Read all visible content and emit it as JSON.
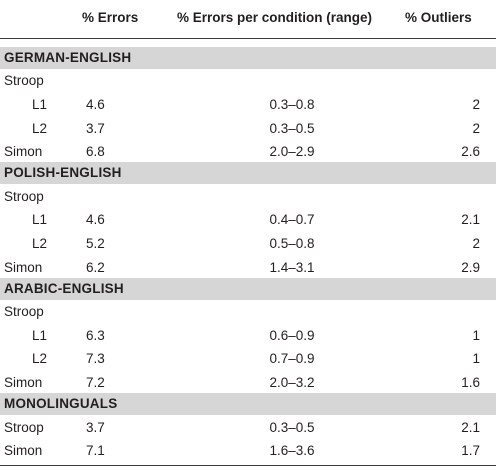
{
  "header": {
    "errors": "% Errors",
    "errors_per_condition": "% Errors per condition (range)",
    "outliers": "% Outliers"
  },
  "sections": [
    {
      "title": "GERMAN-ENGLISH",
      "rows": [
        {
          "label": "Stroop",
          "errors": "",
          "range": "",
          "outliers": ""
        },
        {
          "label": "L1",
          "errors": "4.6",
          "range": "0.3–0.8",
          "outliers": "2"
        },
        {
          "label": "L2",
          "errors": "3.7",
          "range": "0.3–0.5",
          "outliers": "2"
        },
        {
          "label": "Simon",
          "errors": "6.8",
          "range": "2.0–2.9",
          "outliers": "2.6"
        }
      ]
    },
    {
      "title": "POLISH-ENGLISH",
      "rows": [
        {
          "label": "Stroop",
          "errors": "",
          "range": "",
          "outliers": ""
        },
        {
          "label": "L1",
          "errors": "4.6",
          "range": "0.4–0.7",
          "outliers": "2.1"
        },
        {
          "label": "L2",
          "errors": "5.2",
          "range": "0.5–0.8",
          "outliers": "2"
        },
        {
          "label": "Simon",
          "errors": "6.2",
          "range": "1.4–3.1",
          "outliers": "2.9"
        }
      ]
    },
    {
      "title": "ARABIC-ENGLISH",
      "rows": [
        {
          "label": "Stroop",
          "errors": "",
          "range": "",
          "outliers": ""
        },
        {
          "label": "L1",
          "errors": "6.3",
          "range": "0.6–0.9",
          "outliers": "1"
        },
        {
          "label": "L2",
          "errors": "7.3",
          "range": "0.7–0.9",
          "outliers": "1"
        },
        {
          "label": "Simon",
          "errors": "7.2",
          "range": "2.0–3.2",
          "outliers": "1.6"
        }
      ]
    },
    {
      "title": "MONOLINGUALS",
      "rows": [
        {
          "label": "Stroop",
          "errors": "3.7",
          "range": "0.3–0.5",
          "outliers": "2.1"
        },
        {
          "label": "Simon",
          "errors": "7.1",
          "range": "1.6–3.6",
          "outliers": "1.7"
        }
      ]
    }
  ]
}
